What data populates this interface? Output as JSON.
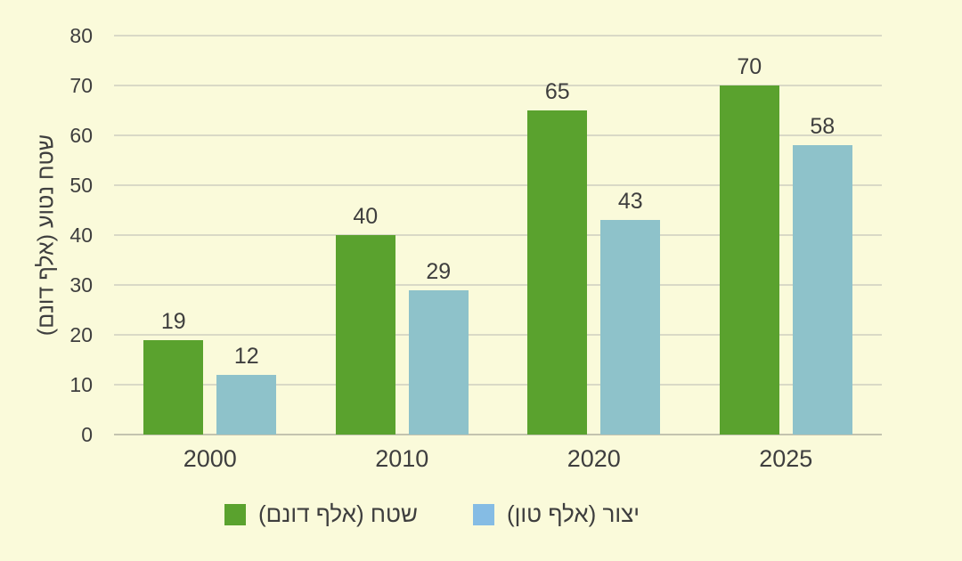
{
  "chart_data": {
    "type": "bar",
    "title": "",
    "xlabel": "",
    "ylabel": "שטח נטוע (אלף דונם)",
    "categories": [
      "2000",
      "2010",
      "2020",
      "2025"
    ],
    "series": [
      {
        "name": "שטח (אלף דונם)",
        "values": [
          19,
          40,
          65,
          70
        ],
        "color": "#5AA22E",
        "legend_marker_color": "#5AA22E"
      },
      {
        "name": "יצור (אלף טון)",
        "values": [
          12,
          29,
          43,
          58
        ],
        "color": "#8EC2CA",
        "legend_marker_color": "#85BCE4"
      }
    ],
    "ylim": [
      0,
      80
    ],
    "yticks": [
      0,
      10,
      20,
      30,
      40,
      50,
      60,
      70,
      80
    ],
    "grid": true,
    "legend_position": "bottom"
  },
  "style": {
    "background": "#FAFADA",
    "gridline_color": "#D9D9C6",
    "baseline_color": "#C3C3AF",
    "text_color": "#3E3E3E"
  }
}
